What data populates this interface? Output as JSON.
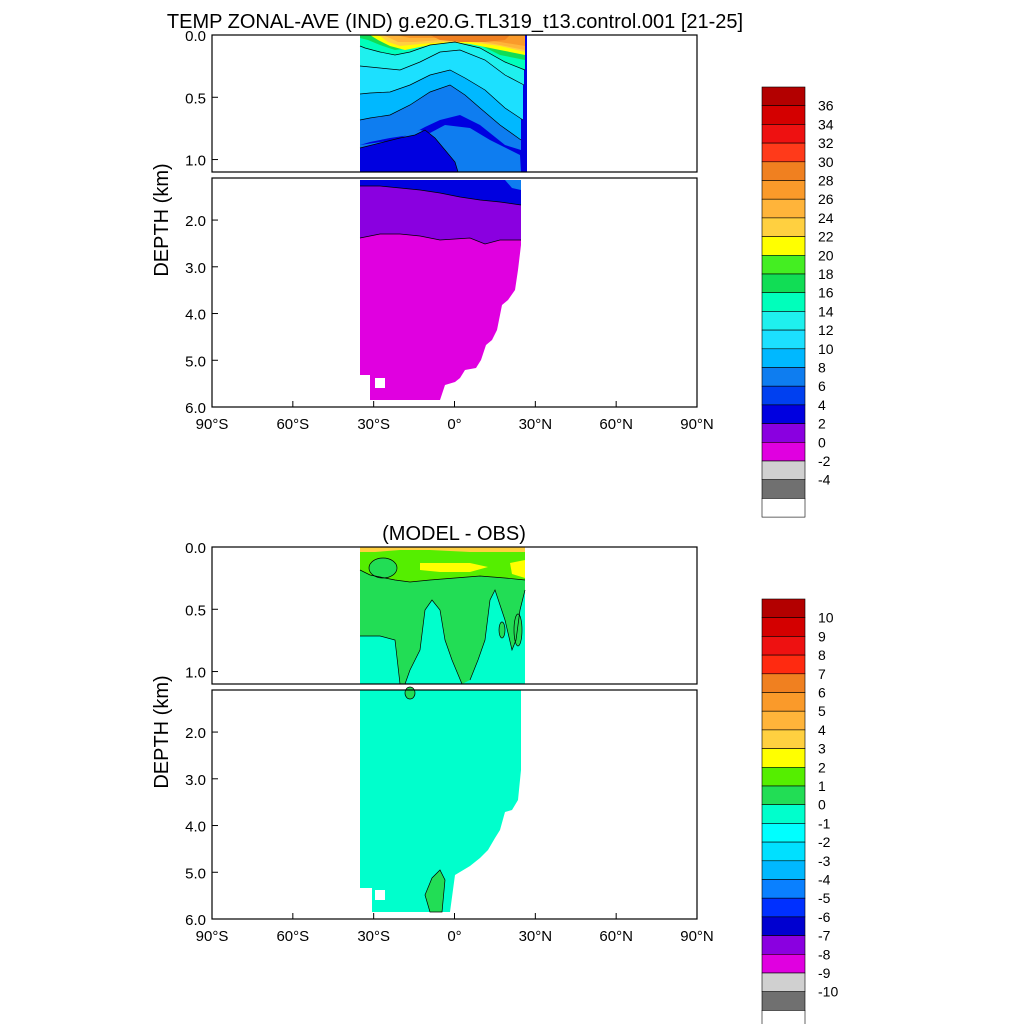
{
  "chart_data": [
    {
      "type": "contour",
      "title": "TEMP ZONAL-AVE (IND) g.e20.G.TL319_t13.control.001 [21-25]",
      "ylabel": "DEPTH (km)",
      "x_ticks": [
        "90°S",
        "60°S",
        "30°S",
        "0°",
        "30°N",
        "60°N",
        "90°N"
      ],
      "y_ticks_upper": [
        "0.0",
        "0.5",
        "1.0"
      ],
      "y_ticks_lower": [
        "2.0",
        "3.0",
        "4.0",
        "5.0",
        "6.0"
      ],
      "xlim": [
        -90,
        90
      ],
      "ylim_upper_km": [
        0,
        1.1
      ],
      "ylim_lower_km": [
        1.1,
        6.0
      ],
      "colorbar_labels": [
        "36",
        "34",
        "32",
        "30",
        "28",
        "26",
        "24",
        "22",
        "20",
        "18",
        "16",
        "14",
        "12",
        "10",
        "8",
        "6",
        "4",
        "2",
        "0",
        "-2",
        "-4"
      ],
      "colorbar_colors": [
        "#b30000",
        "#d40000",
        "#ee1111",
        "#ff3a1a",
        "#f08020",
        "#fa9a2a",
        "#ffb43a",
        "#ffd040",
        "#ffff00",
        "#44ee22",
        "#11dd55",
        "#00ffbb",
        "#1ff0ee",
        "#1ce0ff",
        "#00b8ff",
        "#0e7df0",
        "#0040f0",
        "#0000e0",
        "#8a00e0",
        "#e000e0",
        "#d0d0d0",
        "#707070",
        "#ffffff"
      ]
    },
    {
      "type": "contour",
      "title": "(MODEL - OBS)",
      "ylabel": "DEPTH (km)",
      "x_ticks": [
        "90°S",
        "60°S",
        "30°S",
        "0°",
        "30°N",
        "60°N",
        "90°N"
      ],
      "y_ticks_upper": [
        "0.0",
        "0.5",
        "1.0"
      ],
      "y_ticks_lower": [
        "2.0",
        "3.0",
        "4.0",
        "5.0",
        "6.0"
      ],
      "xlim": [
        -90,
        90
      ],
      "ylim_upper_km": [
        0,
        1.1
      ],
      "ylim_lower_km": [
        1.1,
        6.0
      ],
      "colorbar_labels": [
        "10",
        "9",
        "8",
        "7",
        "6",
        "5",
        "4",
        "3",
        "2",
        "1",
        "0",
        "-1",
        "-2",
        "-3",
        "-4",
        "-5",
        "-6",
        "-7",
        "-8",
        "-9",
        "-10"
      ],
      "colorbar_colors": [
        "#b30000",
        "#d40000",
        "#ee1111",
        "#ff2a10",
        "#f08020",
        "#fa9a2a",
        "#ffb43a",
        "#ffd040",
        "#ffff00",
        "#55ee00",
        "#22dd55",
        "#00ffcc",
        "#00ffff",
        "#00e0ff",
        "#00b8ff",
        "#0a80ff",
        "#0030ff",
        "#0000d0",
        "#8a00e0",
        "#e000e0",
        "#d0d0d0",
        "#707070",
        "#ffffff"
      ]
    }
  ]
}
